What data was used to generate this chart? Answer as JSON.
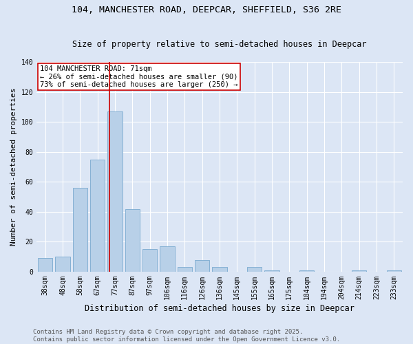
{
  "title": "104, MANCHESTER ROAD, DEEPCAR, SHEFFIELD, S36 2RE",
  "subtitle": "Size of property relative to semi-detached houses in Deepcar",
  "xlabel": "Distribution of semi-detached houses by size in Deepcar",
  "ylabel": "Number of semi-detached properties",
  "categories": [
    "38sqm",
    "48sqm",
    "58sqm",
    "67sqm",
    "77sqm",
    "87sqm",
    "97sqm",
    "106sqm",
    "116sqm",
    "126sqm",
    "136sqm",
    "145sqm",
    "155sqm",
    "165sqm",
    "175sqm",
    "184sqm",
    "194sqm",
    "204sqm",
    "214sqm",
    "223sqm",
    "233sqm"
  ],
  "values": [
    9,
    10,
    56,
    75,
    107,
    42,
    15,
    17,
    3,
    8,
    3,
    0,
    3,
    1,
    0,
    1,
    0,
    0,
    1,
    0,
    1
  ],
  "bar_color": "#b8d0e8",
  "bar_edge_color": "#7aaacf",
  "property_label": "104 MANCHESTER ROAD: 71sqm",
  "pct_smaller": 26,
  "n_smaller": 90,
  "pct_larger": 73,
  "n_larger": 250,
  "red_line_x": 3.7,
  "red_line_color": "#cc0000",
  "annotation_box_color": "#cc0000",
  "background_color": "#dce6f5",
  "plot_background": "#dce6f5",
  "grid_color": "#ffffff",
  "ylim": [
    0,
    140
  ],
  "yticks": [
    0,
    20,
    40,
    60,
    80,
    100,
    120,
    140
  ],
  "footer_line1": "Contains HM Land Registry data © Crown copyright and database right 2025.",
  "footer_line2": "Contains public sector information licensed under the Open Government Licence v3.0.",
  "title_fontsize": 9.5,
  "subtitle_fontsize": 8.5,
  "xlabel_fontsize": 8.5,
  "ylabel_fontsize": 8,
  "tick_fontsize": 7,
  "ann_fontsize": 7.5,
  "footer_fontsize": 6.5
}
